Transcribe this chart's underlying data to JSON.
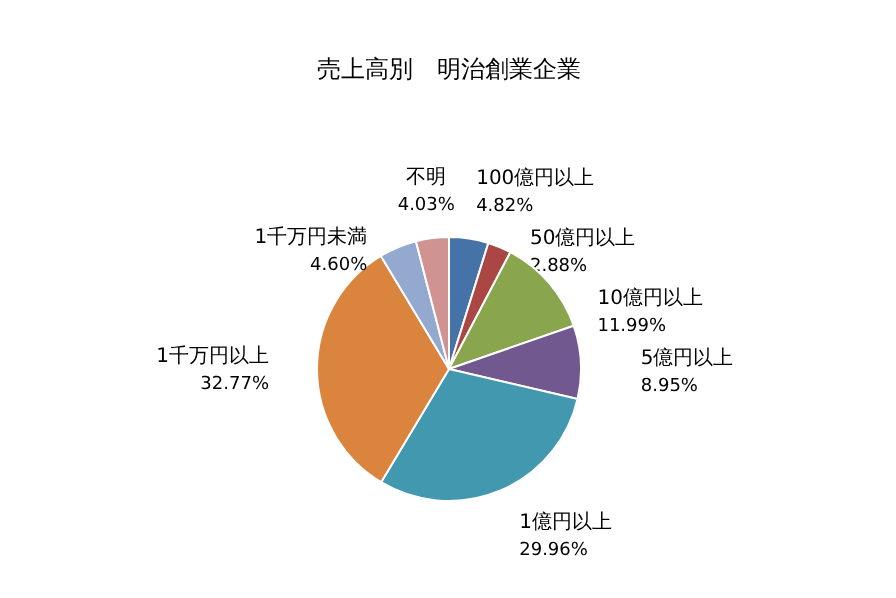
{
  "chart_data": {
    "type": "pie",
    "title": "売上高別　明治創業企業",
    "categories": [
      "100億円以上",
      "50億円以上",
      "10億円以上",
      "5億円以上",
      "1億円以上",
      "1千万円以上",
      "1千万円未満",
      "不明"
    ],
    "values": [
      4.82,
      2.88,
      11.99,
      8.95,
      29.96,
      32.77,
      4.6,
      4.03
    ],
    "value_labels": [
      "4.82%",
      "2.88%",
      "11.99%",
      "8.95%",
      "29.96%",
      "32.77%",
      "4.60%",
      "4.03%"
    ],
    "colors": [
      "#4572a7",
      "#aa4643",
      "#89a54e",
      "#71588f",
      "#4198af",
      "#db843d",
      "#93a9cf",
      "#d19392"
    ]
  }
}
